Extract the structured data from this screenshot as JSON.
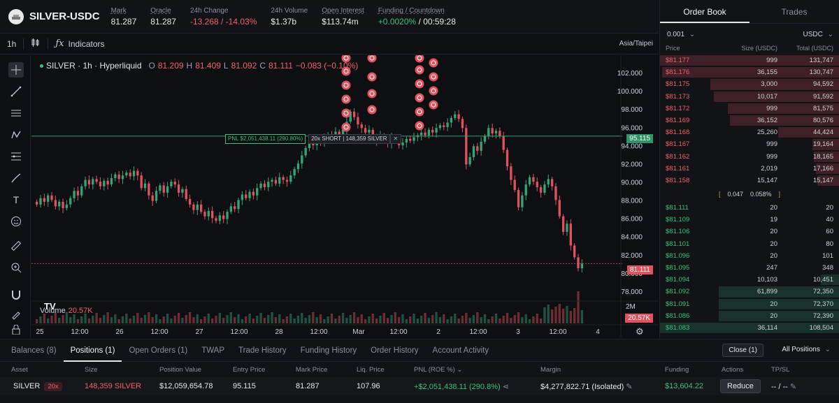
{
  "header": {
    "market": "SILVER-USDC",
    "stats": [
      {
        "label": "Mark",
        "value": "81.287",
        "color": "normal",
        "dashed": true
      },
      {
        "label": "Oracle",
        "value": "81.287",
        "color": "normal",
        "dashed": true
      },
      {
        "label": "24h Change",
        "value": "-13.268 / -14.03%",
        "color": "red",
        "dashed": false
      },
      {
        "label": "24h Volume",
        "value": "$1.37b",
        "color": "normal",
        "dashed": false
      },
      {
        "label": "Open Interest",
        "value": "$113.74m",
        "color": "normal",
        "dashed": true
      },
      {
        "label": "Funding / Countdown",
        "value_green": "+0.0020%",
        "value": " / 00:59:28",
        "color": "mixed",
        "dashed": true
      }
    ]
  },
  "toolbar": {
    "interval": "1h",
    "indicators_label": "Indicators",
    "timezone": "Asia/Taipei"
  },
  "chart": {
    "legend": {
      "symbol": "SILVER · 1h · Hyperliquid",
      "o_key": "O",
      "o_val": "81.209",
      "h_key": "H",
      "h_val": "81.409",
      "l_key": "L",
      "l_val": "81.092",
      "c_key": "C",
      "c_val": "81.111",
      "change": "−0.083 (−0.10%)"
    },
    "pnl_label": "PNL $2,051,438.11 (290.80%)",
    "position_label": "20x SHORT | 148,359 SILVER",
    "close_glyph": "✕",
    "volume_label": "Volume",
    "volume_value": "20.57K",
    "tv_logo": "TV",
    "entry_price_tag": "95.115",
    "last_price_tag": "81.111",
    "volume_tag": "20.57K",
    "volume_axis_label": "2M",
    "colors": {
      "up": "#35a579",
      "down": "#e0525e",
      "entry_line": "#35a579"
    }
  },
  "chart_data": {
    "type": "candlestick",
    "y_ticks": [
      "102.000",
      "100.000",
      "98.000",
      "96.000",
      "94.000",
      "92.000",
      "90.000",
      "88.000",
      "86.000",
      "84.000",
      "82.000",
      "80.000",
      "78.000"
    ],
    "y_range": [
      77,
      104
    ],
    "x_ticks": [
      "25",
      "12:00",
      "26",
      "12:00",
      "27",
      "12:00",
      "28",
      "12:00",
      "Mar",
      "12:00",
      "2",
      "12:00",
      "3",
      "12:00",
      "4"
    ],
    "closes": [
      87.6,
      88.3,
      87.9,
      88.6,
      88.1,
      87.4,
      87.9,
      87.2,
      87.6,
      88.3,
      89.1,
      88.6,
      89.6,
      90.3,
      89.8,
      90.4,
      90.1,
      89.6,
      90.2,
      89.8,
      90.5,
      90.9,
      90.4,
      90.8,
      91.1,
      90.7,
      91.3,
      90.8,
      89.4,
      89.9,
      88.6,
      88.0,
      89.1,
      89.7,
      88.9,
      89.6,
      90.1,
      89.8,
      88.9,
      89.3,
      88.2,
      87.6,
      87.0,
      87.6,
      86.8,
      86.3,
      86.9,
      86.1,
      85.8,
      86.4,
      86.0,
      86.8,
      87.4,
      87.1,
      88.1,
      88.7,
      88.3,
      89.0,
      88.6,
      89.4,
      89.9,
      89.5,
      90.1,
      90.3,
      89.9,
      90.6,
      90.3,
      90.1,
      90.8,
      91.5,
      92.1,
      93.0,
      93.8,
      94.4,
      94.1,
      94.7,
      94.3,
      94.9,
      95.3,
      94.9,
      95.6,
      95.2,
      95.8,
      96.7,
      97.8,
      97.2,
      96.4,
      96.0,
      95.5,
      95.8,
      95.0,
      94.6,
      95.2,
      94.8,
      94.3,
      95.0,
      94.6,
      94.1,
      94.4,
      94.8,
      94.6,
      95.0,
      95.2,
      95.5,
      95.2,
      95.8,
      95.5,
      96.0,
      96.3,
      96.1,
      96.6,
      97.1,
      97.5,
      97.0,
      96.0,
      92.0,
      92.8,
      94.0,
      93.5,
      94.5,
      95.1,
      96.0,
      95.4,
      95.7,
      95.1,
      93.6,
      91.8,
      90.3,
      89.2,
      87.3,
      88.6,
      89.8,
      90.6,
      90.1,
      89.5,
      88.9,
      89.8,
      90.4,
      89.6,
      88.1,
      86.3,
      84.6,
      85.5,
      83.1,
      81.8,
      80.6,
      81.1
    ],
    "volume_hint": "bars at bottom, spike at end",
    "markers": "red S (sell) bubbles near local highs"
  },
  "orderbook": {
    "tabs": [
      "Order Book",
      "Trades"
    ],
    "tick_size": "0.001",
    "unit": "USDC",
    "col_price": "Price",
    "col_size": "Size (USDC)",
    "col_total": "Total (USDC)",
    "asks": [
      {
        "price": "$81.177",
        "size": "999",
        "total": "131,747",
        "depth": 1.0
      },
      {
        "price": "$81.176",
        "size": "36,155",
        "total": "130,747",
        "depth": 0.99
      },
      {
        "price": "$81.175",
        "size": "3,000",
        "total": "94,592",
        "depth": 0.72
      },
      {
        "price": "$81.173",
        "size": "10,017",
        "total": "91,592",
        "depth": 0.7
      },
      {
        "price": "$81.172",
        "size": "999",
        "total": "81,575",
        "depth": 0.62
      },
      {
        "price": "$81.169",
        "size": "36,152",
        "total": "80,576",
        "depth": 0.61
      },
      {
        "price": "$81.168",
        "size": "25,260",
        "total": "44,424",
        "depth": 0.34
      },
      {
        "price": "$81.167",
        "size": "999",
        "total": "19,164",
        "depth": 0.15
      },
      {
        "price": "$81.162",
        "size": "999",
        "total": "18,165",
        "depth": 0.14
      },
      {
        "price": "$81.161",
        "size": "2,019",
        "total": "17,166",
        "depth": 0.13
      },
      {
        "price": "$81.158",
        "size": "15,147",
        "total": "15,147",
        "depth": 0.12
      }
    ],
    "spread_value": "0.047",
    "spread_pct": "0.058%",
    "bids": [
      {
        "price": "$81.111",
        "size": "20",
        "total": "20",
        "depth": 0.0
      },
      {
        "price": "$81.109",
        "size": "19",
        "total": "40",
        "depth": 0.0
      },
      {
        "price": "$81.106",
        "size": "20",
        "total": "60",
        "depth": 0.0
      },
      {
        "price": "$81.101",
        "size": "20",
        "total": "80",
        "depth": 0.0
      },
      {
        "price": "$81.096",
        "size": "20",
        "total": "101",
        "depth": 0.0
      },
      {
        "price": "$81.095",
        "size": "247",
        "total": "348",
        "depth": 0.0
      },
      {
        "price": "$81.094",
        "size": "10,103",
        "total": "10,451",
        "depth": 0.1
      },
      {
        "price": "$81.092",
        "size": "61,899",
        "total": "72,350",
        "depth": 0.67
      },
      {
        "price": "$81.091",
        "size": "20",
        "total": "72,370",
        "depth": 0.67
      },
      {
        "price": "$81.086",
        "size": "20",
        "total": "72,390",
        "depth": 0.67
      },
      {
        "price": "$81.083",
        "size": "36,114",
        "total": "108,504",
        "depth": 1.0
      }
    ]
  },
  "bottom": {
    "tabs": [
      "Balances (8)",
      "Positions (1)",
      "Open Orders (1)",
      "TWAP",
      "Trade History",
      "Funding History",
      "Order History",
      "Account Activity"
    ],
    "active_tab": 1,
    "close_label": "Close (1)",
    "filter_label": "All Positions",
    "columns": [
      "Asset",
      "Size",
      "Position Value",
      "Entry Price",
      "Mark Price",
      "Liq. Price",
      "PNL (ROE %)",
      "Margin",
      "Funding",
      "Actions",
      "TP/SL"
    ],
    "row": {
      "asset": "SILVER",
      "leverage": "20x",
      "size": "148,359 SILVER",
      "position_value": "$12,059,654.78",
      "entry_price": "95.115",
      "mark_price": "81.287",
      "liq_price": "107.96",
      "pnl": "+$2,051,438.11 (290.8%)",
      "margin": "$4,277,822.71 (Isolated)",
      "funding": "$13,604.22",
      "action": "Reduce",
      "tpsl": "-- / --"
    }
  }
}
